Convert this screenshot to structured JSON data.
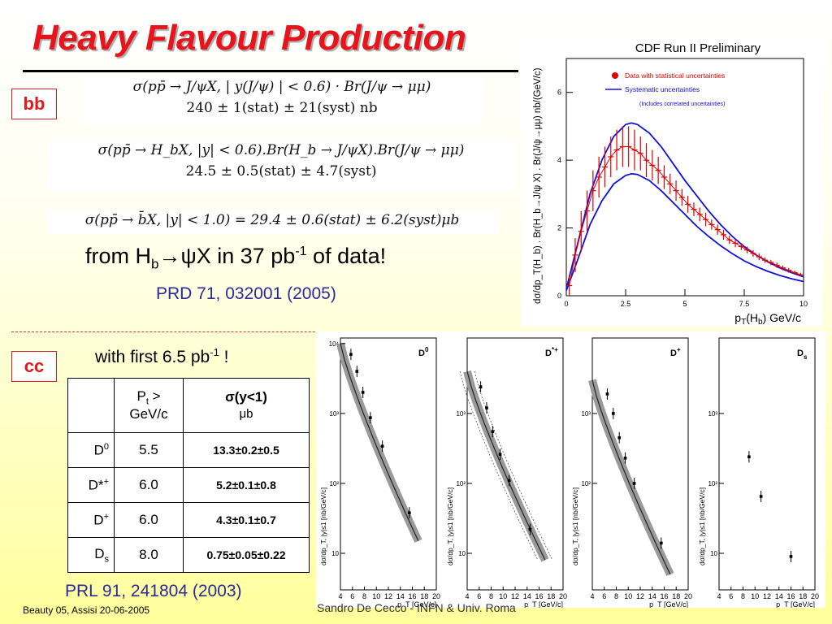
{
  "slide": {
    "title": "Heavy Flavour Production",
    "bb_tag": "bb",
    "cc_tag": "cc",
    "eq1_line1": "σ(pp̄ → J/ψX, | y(J/ψ) | < 0.6) · Br(J/ψ → μμ)",
    "eq1_line2": "240 ± 1(stat) ± 21(syst) nb",
    "eq2_line1": "σ(pp̄ → H_bX, |y| < 0.6).Br(H_b → J/ψX).Br(J/ψ → μμ)",
    "eq2_line2": "24.5 ± 0.5(stat) ± 4.7(syst)",
    "eq3": "σ(pp̄ → b̄X, |y| < 1.0) = 29.4 ± 0.6(stat) ± 6.2(syst)μb",
    "from_prefix": "from H",
    "from_sub": "b",
    "from_mid": "→ψX in 37 pb",
    "from_sup": "-1",
    "from_suffix": " of data!",
    "ref1": "PRD 71, 032001 (2005)",
    "with_first": "with first 6.5 pb",
    "with_first_sup": "-1",
    "with_first_end": " !",
    "ref2": "PRL 91, 241804 (2003)",
    "footer_left": "Beauty 05, Assisi 20-06-2005",
    "footer_mid": "Sandro De Cecco - INFN & Univ. Roma"
  },
  "table": {
    "hdr_pt_1": "P",
    "hdr_pt_sub": "t",
    "hdr_pt_2": " >",
    "hdr_pt_3": "GeV/c",
    "hdr_sig_1": "σ(y<1)",
    "hdr_sig_2": "μb",
    "rows": [
      {
        "m": "D",
        "sup": "0",
        "sub": "",
        "pt": "5.5",
        "sig": "13.3±0.2±0.5"
      },
      {
        "m": "D*",
        "sup": "+",
        "sub": "",
        "pt": "6.0",
        "sig": "5.2±0.1±0.8"
      },
      {
        "m": "D",
        "sup": "+",
        "sub": "",
        "pt": "6.0",
        "sig": "4.3±0.1±0.7"
      },
      {
        "m": "D",
        "sup": "",
        "sub": "s",
        "pt": "8.0",
        "sig": "0.75±0.05±0.22"
      }
    ]
  },
  "chart_data": [
    {
      "type": "line",
      "title": "CDF Run II Preliminary",
      "xlabel": "p_T(H_b) GeV/c",
      "ylabel": "dσ/dp_T(H_b) . Br(H_b→J/ψ X) . Br(J/ψ→μμ) nb/(GeV/c)",
      "xlim": [
        0,
        10
      ],
      "ylim": [
        0,
        7
      ],
      "x_ticks": [
        "0",
        "2.5",
        "5",
        "7.5",
        "10"
      ],
      "y_ticks": [
        "0",
        "2",
        "4",
        "6"
      ],
      "legend": [
        "Data with statistical uncertainties",
        "Systematic uncertainties",
        "(Includes correlated uncertainties)"
      ],
      "legend_position": "top-right",
      "colors": {
        "data": "#e00000",
        "syst": "#1010e0"
      },
      "series": [
        {
          "name": "Data with statistical uncertainties",
          "x": [
            0.125,
            0.375,
            0.625,
            0.875,
            1.125,
            1.375,
            1.625,
            1.875,
            2.125,
            2.375,
            2.625,
            2.875,
            3.125,
            3.375,
            3.625,
            3.875,
            4.125,
            4.375,
            4.625,
            4.875,
            5.125,
            5.375,
            5.625,
            5.875,
            6.125,
            6.375,
            6.625,
            6.875,
            7.125,
            7.375,
            7.625,
            7.875,
            8.125,
            8.375,
            8.625,
            8.875,
            9.125,
            9.375,
            9.625,
            9.875
          ],
          "y": [
            0.3,
            1.2,
            1.9,
            2.5,
            3.1,
            3.5,
            3.8,
            4.1,
            4.3,
            4.4,
            4.4,
            4.3,
            4.2,
            4.0,
            3.85,
            3.7,
            3.5,
            3.3,
            3.1,
            2.9,
            2.7,
            2.55,
            2.4,
            2.25,
            2.1,
            1.95,
            1.8,
            1.65,
            1.55,
            1.45,
            1.35,
            1.25,
            1.15,
            1.05,
            0.98,
            0.9,
            0.82,
            0.75,
            0.68,
            0.62
          ],
          "err": [
            0.3,
            0.5,
            0.6,
            0.6,
            0.6,
            0.6,
            0.6,
            0.6,
            0.6,
            0.6,
            0.6,
            0.6,
            0.5,
            0.5,
            0.45,
            0.4,
            0.35,
            0.3,
            0.3,
            0.25,
            0.25,
            0.2,
            0.2,
            0.2,
            0.15,
            0.15,
            0.15,
            0.12,
            0.12,
            0.1,
            0.1,
            0.1,
            0.1,
            0.08,
            0.08,
            0.08,
            0.07,
            0.07,
            0.06,
            0.06
          ]
        },
        {
          "name": "Systematic uncertainties (upper)",
          "x": [
            0,
            0.5,
            1,
            1.5,
            2,
            2.5,
            2.75,
            3,
            3.5,
            4,
            4.5,
            5,
            5.5,
            6,
            6.5,
            7,
            7.5,
            8,
            8.5,
            9,
            9.5,
            10
          ],
          "y": [
            0.2,
            1.6,
            3.0,
            4.0,
            4.7,
            5.05,
            5.1,
            5.05,
            4.8,
            4.4,
            3.9,
            3.4,
            2.95,
            2.5,
            2.1,
            1.75,
            1.45,
            1.2,
            1.0,
            0.82,
            0.68,
            0.56
          ]
        },
        {
          "name": "Systematic uncertainties (lower)",
          "x": [
            0,
            0.5,
            1,
            1.5,
            2,
            2.5,
            2.75,
            3,
            3.5,
            4,
            4.5,
            5,
            5.5,
            6,
            6.5,
            7,
            7.5,
            8,
            8.5,
            9,
            9.5,
            10
          ],
          "y": [
            0.15,
            1.1,
            2.1,
            2.8,
            3.3,
            3.55,
            3.6,
            3.58,
            3.4,
            3.1,
            2.75,
            2.4,
            2.05,
            1.75,
            1.48,
            1.24,
            1.03,
            0.86,
            0.72,
            0.6,
            0.5,
            0.42
          ]
        }
      ]
    },
    {
      "type": "scatter",
      "panels": [
        {
          "label": "D",
          "label_sup": "0",
          "label_sub": "",
          "y_ticks": [
            "10⁴",
            "10³",
            "10²",
            "10"
          ],
          "x": [
            5.75,
            6.75,
            7.75,
            9.0,
            11.0,
            15.5
          ],
          "y": [
            7000,
            4000,
            2000,
            870,
            340,
            38
          ]
        },
        {
          "label": "D",
          "label_sup": "*+",
          "label_sub": "",
          "y_ticks": [
            "10³",
            "10²",
            "10"
          ],
          "x": [
            6.25,
            7.25,
            8.25,
            9.5,
            11.0,
            14.5
          ],
          "y": [
            2400,
            1200,
            550,
            260,
            110,
            22
          ]
        },
        {
          "label": "D",
          "label_sup": "+",
          "label_sub": "",
          "y_ticks": [
            "10³",
            "10²"
          ],
          "x": [
            6.5,
            7.5,
            8.5,
            9.5,
            11.0,
            15.5
          ],
          "y": [
            1900,
            1000,
            450,
            230,
            100,
            14
          ]
        },
        {
          "label": "D",
          "label_sup": "",
          "label_sub": "s",
          "y_ticks": [
            "10³",
            "10²",
            "10"
          ],
          "x": [
            9.0,
            11.0,
            16.0
          ],
          "y": [
            240,
            65,
            9
          ]
        }
      ],
      "x_ticks": [
        "4",
        "6",
        "8",
        "10",
        "12",
        "14",
        "16",
        "18",
        "20"
      ],
      "xlabel": "p_T [GeV/c]",
      "ylabel": "dσ/dp_T, |y|≤1 [nb/GeV/c]"
    }
  ]
}
